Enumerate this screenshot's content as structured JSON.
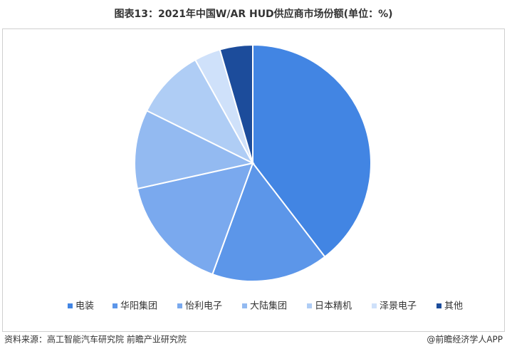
{
  "chart_data": {
    "type": "pie",
    "title": "图表13：2021年中国W/AR HUD供应商市场份额(单位：%)",
    "categories": [
      "电装",
      "华阳集团",
      "怡利电子",
      "大陆集团",
      "日本精机",
      "泽景电子",
      "其他"
    ],
    "values": [
      39.6,
      16,
      16,
      10.8,
      9.6,
      3.6,
      4.5
    ],
    "colors": [
      "#4285e3",
      "#5c96e9",
      "#7aa9ee",
      "#93baf1",
      "#afcdf5",
      "#cfe1fa",
      "#1c4c9b"
    ]
  },
  "footer": {
    "source": "资料来源：高工智能汽车研究院 前瞻产业研究院",
    "credit": "@前瞻经济学人APP"
  }
}
